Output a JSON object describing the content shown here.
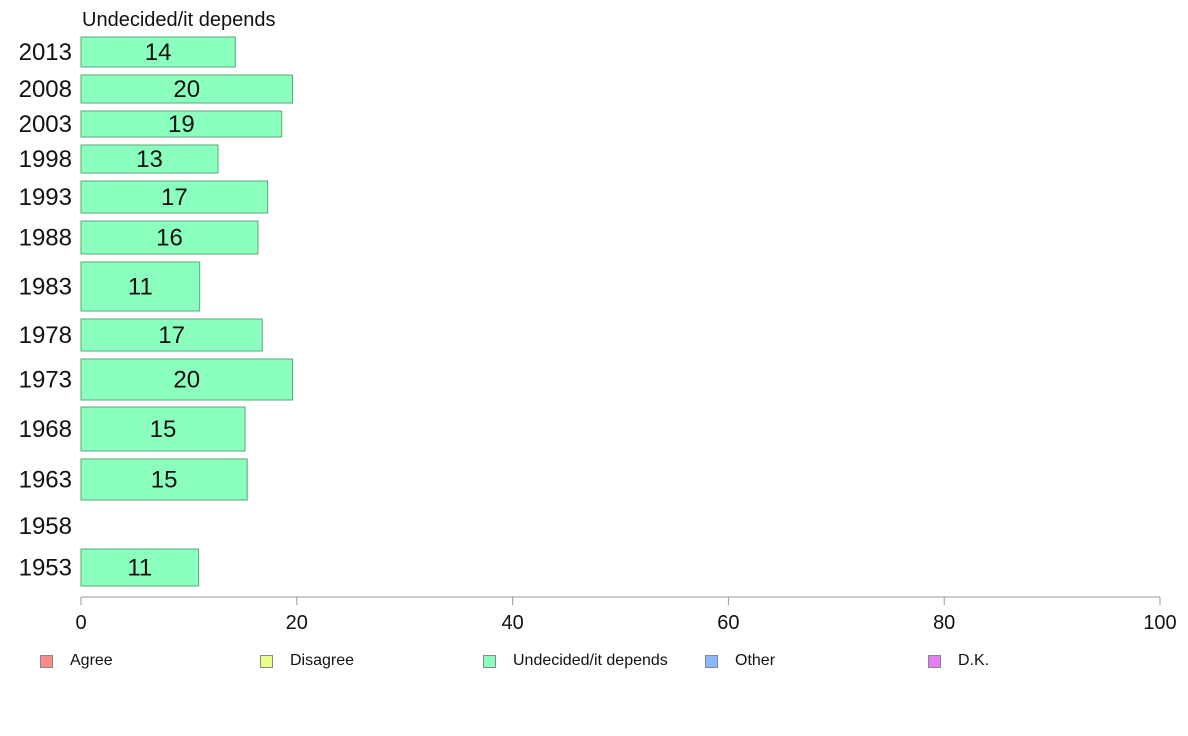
{
  "chart_data": {
    "type": "bar",
    "orientation": "horizontal",
    "title": "Undecided/it depends",
    "categories": [
      "2013",
      "2008",
      "2003",
      "1998",
      "1993",
      "1988",
      "1983",
      "1978",
      "1973",
      "1968",
      "1963",
      "1958",
      "1953"
    ],
    "series": [
      {
        "name": "Undecided/it depends",
        "color": "#8affbe",
        "values": [
          14,
          20,
          19,
          13,
          17,
          16,
          11,
          17,
          20,
          15,
          15,
          null,
          11
        ],
        "precise_values": [
          14.3,
          19.6,
          18.6,
          12.7,
          17.3,
          16.4,
          11.0,
          16.8,
          19.6,
          15.2,
          15.4,
          null,
          10.9
        ]
      }
    ],
    "xlim": [
      0,
      100
    ],
    "x_ticks": [
      0,
      20,
      40,
      60,
      80,
      100
    ],
    "grid": false,
    "legend_position": "bottom",
    "legend": [
      {
        "label": "Agree",
        "color": "#ff8a8a"
      },
      {
        "label": "Disagree",
        "color": "#eaff8a"
      },
      {
        "label": "Undecided/it depends",
        "color": "#8affbe"
      },
      {
        "label": "Other",
        "color": "#8ab8ff"
      },
      {
        "label": "D.K.",
        "color": "#e87cf5"
      }
    ]
  }
}
